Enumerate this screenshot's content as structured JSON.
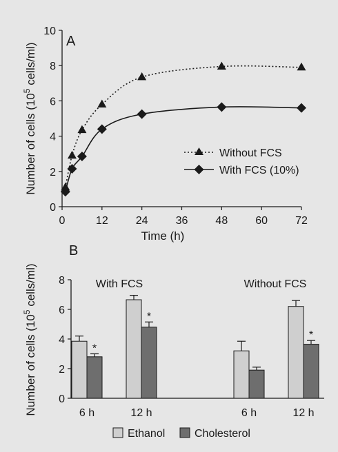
{
  "chart_data": [
    {
      "panel": "A",
      "type": "line",
      "xlabel": "Time (h)",
      "ylabel": "Number of cells (10⁵ cells/ml)",
      "xlim": [
        0,
        72
      ],
      "ylim": [
        0,
        10
      ],
      "xticks": [
        "0",
        "12",
        "24",
        "36",
        "48",
        "60",
        "72"
      ],
      "yticks": [
        "0",
        "2",
        "4",
        "6",
        "8",
        "10"
      ],
      "legend_position": "right",
      "series": [
        {
          "name": "Without FCS",
          "style": "dotted",
          "marker": "triangle",
          "color": "#1a1a1a",
          "x": [
            1,
            3,
            6,
            12,
            24,
            48,
            72
          ],
          "y": [
            1.1,
            2.9,
            4.35,
            5.8,
            7.35,
            7.95,
            7.9
          ]
        },
        {
          "name": "With FCS (10%)",
          "style": "solid",
          "marker": "diamond",
          "color": "#1a1a1a",
          "x": [
            1,
            3,
            6,
            12,
            24,
            48,
            72
          ],
          "y": [
            0.85,
            2.15,
            2.85,
            4.4,
            5.25,
            5.65,
            5.6
          ]
        }
      ]
    },
    {
      "panel": "B",
      "type": "bar",
      "ylabel": "Number of cells (10⁵ cells/ml)",
      "ylim": [
        0,
        8
      ],
      "yticks": [
        "0",
        "2",
        "4",
        "6",
        "8"
      ],
      "legend_position": "bottom",
      "groups": [
        {
          "label": "With FCS",
          "categories": [
            "6 h",
            "12 h"
          ]
        },
        {
          "label": "Without FCS",
          "categories": [
            "6 h",
            "12 h"
          ]
        }
      ],
      "series": [
        {
          "name": "Ethanol",
          "color": "#cfcfcf",
          "values": [
            3.85,
            6.65,
            3.2,
            6.2
          ],
          "errors": [
            0.35,
            0.3,
            0.65,
            0.4
          ]
        },
        {
          "name": "Cholesterol",
          "color": "#6e6e6e",
          "values": [
            2.8,
            4.8,
            1.9,
            3.65
          ],
          "errors": [
            0.2,
            0.35,
            0.2,
            0.25
          ]
        }
      ],
      "significance": [
        {
          "index": 0,
          "label": "*"
        },
        {
          "index": 1,
          "label": "*"
        },
        {
          "index": 3,
          "label": "*"
        }
      ]
    }
  ]
}
